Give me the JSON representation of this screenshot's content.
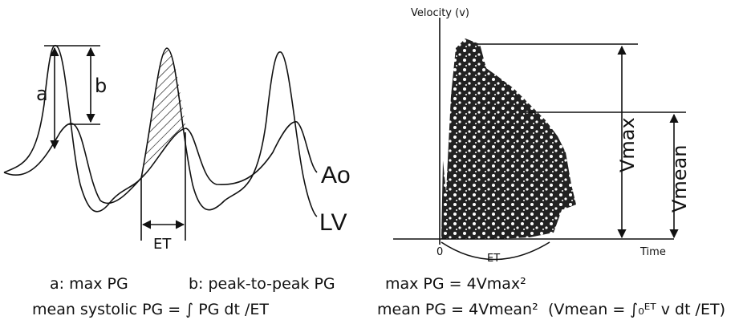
{
  "left_panel": {
    "label_a": "a",
    "label_b": "b",
    "label_ao": "Ao",
    "label_lv": "LV",
    "label_et": "ET"
  },
  "right_panel": {
    "y_axis_label": "Velocity (v)",
    "x_axis_label": "Time",
    "origin_label": "0",
    "label_et": "ET",
    "label_vmax": "Vmax",
    "label_vmean": "Vmean"
  },
  "captions": {
    "a_def": "a: max PG",
    "b_def": "b: peak-to-peak PG",
    "mean_systolic": "mean systolic PG = ∫ PG dt /ET",
    "max_pg": "max PG = 4Vmax²",
    "mean_pg": "mean PG = 4Vmean²",
    "vmean_def": "(Vmean = ∫₀ᴱᵀ v dt /ET)"
  }
}
